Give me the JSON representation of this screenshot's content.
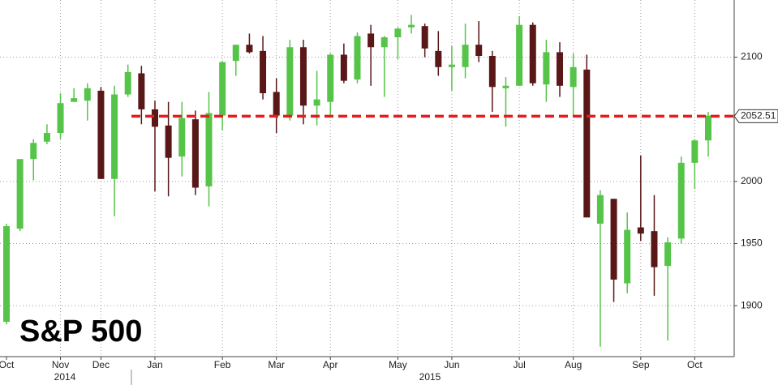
{
  "chart_data": {
    "type": "candlestick",
    "title": "S&P 500",
    "categories": [
      "Oct",
      null,
      null,
      null,
      "Nov",
      null,
      null,
      "Dec",
      null,
      null,
      null,
      "Jan",
      null,
      null,
      null,
      null,
      "Feb",
      null,
      null,
      null,
      "Mar",
      null,
      null,
      null,
      "Apr",
      null,
      null,
      null,
      null,
      "May",
      null,
      null,
      null,
      "Jun",
      null,
      null,
      null,
      null,
      "Jul",
      null,
      null,
      null,
      "Aug",
      null,
      null,
      null,
      null,
      "Sep",
      null,
      null,
      null,
      "Oct",
      null
    ],
    "year_labels": [
      "2014",
      "2015"
    ],
    "open": [
      1887,
      1962,
      2018,
      2032,
      2039,
      2064,
      2065,
      2073,
      2002,
      2070,
      2087,
      2058,
      2045,
      2020,
      2050,
      1996,
      2053,
      2097,
      2110,
      2105,
      2072,
      2053,
      2108,
      2061,
      2064,
      2102,
      2082,
      2119,
      2108,
      2116,
      2124,
      2125,
      2105,
      2092,
      2092,
      2110,
      2101,
      2075,
      2077,
      2126,
      2078,
      2104,
      2076,
      2090,
      1966,
      1986,
      1918,
      1963,
      1960,
      1932,
      1954,
      2015,
      2033
    ],
    "high": [
      1966,
      2018,
      2034,
      2046,
      2071,
      2075,
      2079,
      2076,
      2077,
      2094,
      2093,
      2065,
      2064,
      2064,
      2057,
      2072,
      2097,
      2110,
      2119,
      2117,
      2083,
      2114,
      2114,
      2089,
      2103,
      2111,
      2120,
      2126,
      2117,
      2124,
      2134,
      2127,
      2121,
      2109,
      2127,
      2129,
      2105,
      2084,
      2133,
      2128,
      2114,
      2112,
      2103,
      2102,
      1993,
      1986,
      1975,
      2021,
      1989,
      1955,
      2020,
      2034,
      2056
    ],
    "low": [
      1885,
      1960,
      2001,
      2030,
      2034,
      2064,
      2049,
      2002,
      1972,
      2068,
      2046,
      1992,
      1988,
      2004,
      1989,
      1980,
      2041,
      2085,
      2103,
      2066,
      2039,
      2049,
      2046,
      2045,
      2052,
      2079,
      2079,
      2077,
      2068,
      2098,
      2119,
      2100,
      2085,
      2073,
      2083,
      2096,
      2056,
      2044,
      2077,
      2077,
      2064,
      2068,
      2052,
      1971,
      1867,
      1903,
      1910,
      1952,
      1908,
      1872,
      1950,
      1994,
      2020
    ],
    "close": [
      1964,
      2018,
      2031,
      2039,
      2063,
      2067,
      2075,
      2002,
      2070,
      2088,
      2058,
      2044,
      2019,
      2051,
      1995,
      2055,
      2096,
      2110,
      2104,
      2071,
      2053,
      2108,
      2061,
      2066,
      2102,
      2081,
      2117,
      2108,
      2116,
      2123,
      2126,
      2107,
      2092,
      2094,
      2110,
      2101,
      2076,
      2077,
      2126,
      2079,
      2104,
      2077,
      2092,
      1971,
      1989,
      1921,
      1961,
      1958,
      1931,
      1951,
      2015,
      2033,
      2053
    ],
    "up_color": "#56c449",
    "down_color": "#5a1717",
    "ylim": [
      1859,
      2146
    ],
    "yticks": [
      1900,
      1950,
      2000,
      2100
    ],
    "grid": true,
    "reference_line": {
      "value": 2052.51,
      "color": "#e41e1e"
    }
  }
}
